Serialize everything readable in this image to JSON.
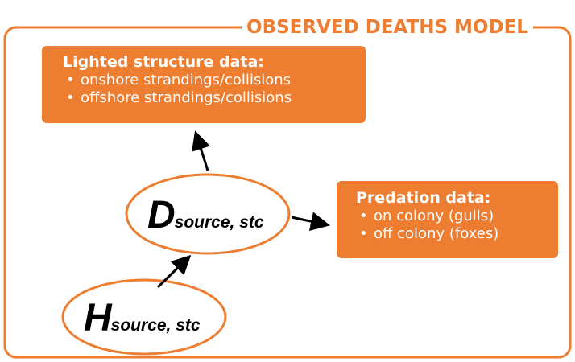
{
  "frame": {
    "title": "OBSERVED DEATHS MODEL"
  },
  "boxes": {
    "lighted": {
      "title": "Lighted structure data:",
      "bullets": [
        "onshore strandings/collisions",
        "offshore strandings/collisions"
      ]
    },
    "predation": {
      "title": "Predation data:",
      "bullets": [
        "on colony (gulls)",
        "off colony (foxes)"
      ]
    }
  },
  "nodes": {
    "d": {
      "symbol": "D",
      "subscript": "source, stc"
    },
    "h": {
      "symbol": "H",
      "subscript": "source, stc"
    }
  },
  "bullet_glyph": "•",
  "colors": {
    "accent": "#ED7D31",
    "box_text": "#FFFFFF",
    "node_text": "#000000",
    "arrow": "#000000",
    "background": "#FFFFFF"
  }
}
